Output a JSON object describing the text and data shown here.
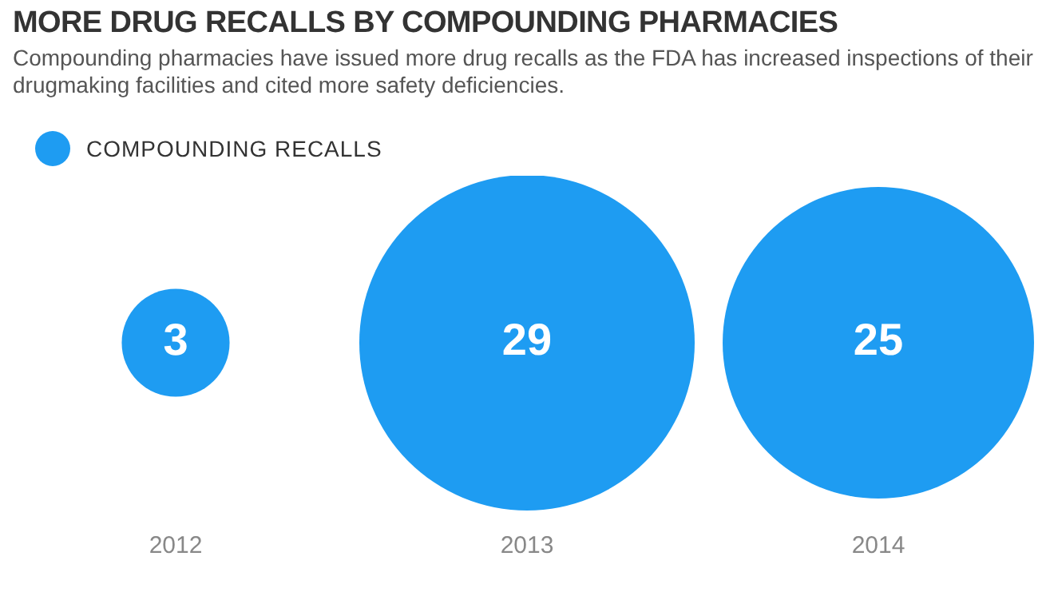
{
  "chart_data": {
    "type": "other",
    "title": "MORE DRUG RECALLS BY COMPOUNDING PHARMACIES",
    "subtitle": "Compounding pharmacies have issued more drug recalls as the FDA has increased inspections of their drugmaking facilities and cited more safety deficiencies.",
    "categories": [
      "2012",
      "2013",
      "2014"
    ],
    "series": [
      {
        "name": "COMPOUNDING RECALLS",
        "color": "#1e9cf2",
        "values": [
          3,
          29,
          25
        ]
      }
    ],
    "data_labels": true,
    "legend": "top left"
  }
}
